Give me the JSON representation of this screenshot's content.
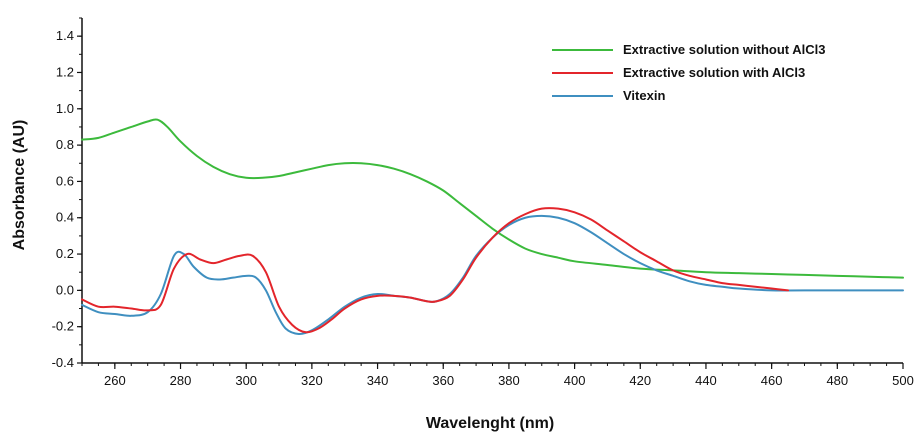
{
  "chart_data": {
    "type": "line",
    "title": "",
    "xlabel": "Wavelenght (nm)",
    "ylabel": "Absorbance (AU)",
    "xlim": [
      250,
      500
    ],
    "ylim": [
      -0.4,
      1.5
    ],
    "x_ticks": [
      260,
      280,
      300,
      320,
      340,
      360,
      380,
      400,
      420,
      440,
      460,
      480,
      500
    ],
    "y_ticks": [
      -0.4,
      -0.2,
      0.0,
      0.2,
      0.4,
      0.6,
      0.8,
      1.0,
      1.2,
      1.4
    ],
    "x_tick_labels": [
      "260",
      "280",
      "300",
      "320",
      "340",
      "360",
      "380",
      "400",
      "420",
      "440",
      "460",
      "480",
      "500"
    ],
    "y_tick_labels": [
      "-0.4",
      "-0.2",
      "0.0",
      "0.2",
      "0.4",
      "0.6",
      "0.8",
      "1.0",
      "1.2",
      "1.4"
    ],
    "grid": false,
    "legend_position": "top-right",
    "series": [
      {
        "name": "Extractive solution without AlCl3",
        "color": "#3cba3c",
        "points": [
          [
            250,
            0.83
          ],
          [
            255,
            0.84
          ],
          [
            260,
            0.87
          ],
          [
            265,
            0.9
          ],
          [
            270,
            0.93
          ],
          [
            273,
            0.94
          ],
          [
            276,
            0.9
          ],
          [
            280,
            0.82
          ],
          [
            285,
            0.74
          ],
          [
            290,
            0.68
          ],
          [
            295,
            0.64
          ],
          [
            300,
            0.62
          ],
          [
            305,
            0.62
          ],
          [
            310,
            0.63
          ],
          [
            315,
            0.65
          ],
          [
            320,
            0.67
          ],
          [
            325,
            0.69
          ],
          [
            330,
            0.7
          ],
          [
            335,
            0.7
          ],
          [
            340,
            0.69
          ],
          [
            345,
            0.67
          ],
          [
            350,
            0.64
          ],
          [
            355,
            0.6
          ],
          [
            360,
            0.55
          ],
          [
            365,
            0.48
          ],
          [
            370,
            0.41
          ],
          [
            375,
            0.34
          ],
          [
            380,
            0.28
          ],
          [
            385,
            0.23
          ],
          [
            390,
            0.2
          ],
          [
            395,
            0.18
          ],
          [
            400,
            0.16
          ],
          [
            410,
            0.14
          ],
          [
            420,
            0.12
          ],
          [
            430,
            0.11
          ],
          [
            440,
            0.1
          ],
          [
            450,
            0.095
          ],
          [
            460,
            0.09
          ],
          [
            470,
            0.085
          ],
          [
            480,
            0.08
          ],
          [
            490,
            0.075
          ],
          [
            500,
            0.07
          ]
        ]
      },
      {
        "name": "Extractive solution with AlCl3",
        "color": "#e3252b",
        "points": [
          [
            250,
            -0.05
          ],
          [
            255,
            -0.09
          ],
          [
            260,
            -0.09
          ],
          [
            265,
            -0.1
          ],
          [
            270,
            -0.11
          ],
          [
            274,
            -0.08
          ],
          [
            278,
            0.12
          ],
          [
            282,
            0.2
          ],
          [
            286,
            0.17
          ],
          [
            290,
            0.15
          ],
          [
            294,
            0.17
          ],
          [
            298,
            0.19
          ],
          [
            302,
            0.19
          ],
          [
            306,
            0.1
          ],
          [
            310,
            -0.09
          ],
          [
            314,
            -0.19
          ],
          [
            318,
            -0.23
          ],
          [
            322,
            -0.21
          ],
          [
            326,
            -0.16
          ],
          [
            330,
            -0.1
          ],
          [
            335,
            -0.05
          ],
          [
            340,
            -0.03
          ],
          [
            345,
            -0.03
          ],
          [
            350,
            -0.04
          ],
          [
            355,
            -0.06
          ],
          [
            358,
            -0.06
          ],
          [
            362,
            -0.03
          ],
          [
            366,
            0.06
          ],
          [
            370,
            0.18
          ],
          [
            375,
            0.29
          ],
          [
            380,
            0.37
          ],
          [
            385,
            0.42
          ],
          [
            390,
            0.45
          ],
          [
            395,
            0.45
          ],
          [
            400,
            0.43
          ],
          [
            405,
            0.39
          ],
          [
            410,
            0.33
          ],
          [
            415,
            0.27
          ],
          [
            420,
            0.21
          ],
          [
            425,
            0.16
          ],
          [
            430,
            0.11
          ],
          [
            435,
            0.08
          ],
          [
            440,
            0.06
          ],
          [
            445,
            0.04
          ],
          [
            450,
            0.03
          ],
          [
            455,
            0.02
          ],
          [
            460,
            0.01
          ],
          [
            465,
            0.0
          ]
        ]
      },
      {
        "name": "Vitexin",
        "color": "#3f8fc0",
        "points": [
          [
            250,
            -0.08
          ],
          [
            255,
            -0.12
          ],
          [
            260,
            -0.13
          ],
          [
            265,
            -0.14
          ],
          [
            270,
            -0.12
          ],
          [
            274,
            -0.02
          ],
          [
            278,
            0.19
          ],
          [
            281,
            0.2
          ],
          [
            284,
            0.13
          ],
          [
            288,
            0.07
          ],
          [
            292,
            0.06
          ],
          [
            296,
            0.07
          ],
          [
            300,
            0.08
          ],
          [
            303,
            0.07
          ],
          [
            306,
            0.0
          ],
          [
            309,
            -0.12
          ],
          [
            312,
            -0.21
          ],
          [
            316,
            -0.24
          ],
          [
            320,
            -0.22
          ],
          [
            325,
            -0.16
          ],
          [
            330,
            -0.09
          ],
          [
            335,
            -0.04
          ],
          [
            340,
            -0.02
          ],
          [
            345,
            -0.03
          ],
          [
            350,
            -0.04
          ],
          [
            355,
            -0.06
          ],
          [
            358,
            -0.06
          ],
          [
            362,
            -0.02
          ],
          [
            366,
            0.07
          ],
          [
            370,
            0.19
          ],
          [
            375,
            0.29
          ],
          [
            380,
            0.36
          ],
          [
            385,
            0.4
          ],
          [
            390,
            0.41
          ],
          [
            395,
            0.4
          ],
          [
            400,
            0.37
          ],
          [
            405,
            0.32
          ],
          [
            410,
            0.26
          ],
          [
            415,
            0.2
          ],
          [
            420,
            0.15
          ],
          [
            425,
            0.11
          ],
          [
            430,
            0.08
          ],
          [
            435,
            0.05
          ],
          [
            440,
            0.03
          ],
          [
            445,
            0.02
          ],
          [
            450,
            0.01
          ],
          [
            460,
            0.0
          ],
          [
            470,
            0.0
          ],
          [
            500,
            0.0
          ]
        ]
      }
    ]
  }
}
